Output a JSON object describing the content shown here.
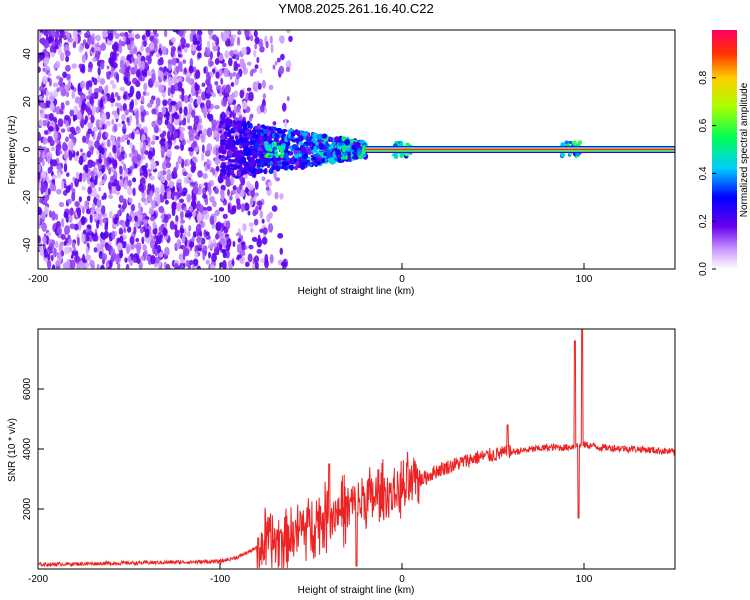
{
  "title": "YM08.2025.261.16.40.C22",
  "chart_data": [
    {
      "type": "heatmap",
      "xlabel": "Height of straight line (km)",
      "ylabel": "Frequency (Hz)",
      "xlim": [
        -200,
        150
      ],
      "ylim": [
        -50,
        50
      ],
      "xticks": [
        -200,
        -100,
        0,
        100
      ],
      "yticks": [
        -40,
        -20,
        0,
        20,
        40
      ],
      "colorbar": {
        "label": "Normalized spectral amplitude",
        "range": [
          0,
          1
        ],
        "ticks": [
          0,
          0.2,
          0.4,
          0.6,
          0.8
        ],
        "tick_labels": [
          "0.0",
          "0.2",
          "0.4",
          "0.6",
          "0.8"
        ]
      },
      "features": {
        "noise_region_x": [
          -200,
          -75
        ],
        "signal_line_freq": 0,
        "signal_onset_x": -20,
        "bursts_x": [
          -70,
          0,
          93
        ]
      },
      "grid": false
    },
    {
      "type": "line",
      "xlabel": "Height of straight line (km)",
      "ylabel": "SNR (10 * v/v)",
      "xlim": [
        -200,
        150
      ],
      "ylim": [
        0,
        8000
      ],
      "xticks": [
        -200,
        -100,
        0,
        100
      ],
      "yticks": [
        2000,
        4000,
        6000
      ],
      "series": [
        {
          "color": "#ee2222",
          "envelope_x": [
            -200,
            -100,
            -90,
            -80,
            -60,
            -40,
            -20,
            0,
            20,
            40,
            60,
            80,
            90,
            95,
            100,
            110,
            130,
            150
          ],
          "envelope_y": [
            150,
            250,
            400,
            700,
            1200,
            1800,
            2300,
            2600,
            3300,
            3700,
            3900,
            4050,
            4050,
            4100,
            4150,
            4050,
            4000,
            3900
          ],
          "spikes": [
            {
              "x": 95,
              "y": 7600
            },
            {
              "x": 97,
              "y": 1700
            },
            {
              "x": 99,
              "y": 8000
            },
            {
              "x": 58,
              "y": 4800
            },
            {
              "x": -40,
              "y": 3500
            },
            {
              "x": -25,
              "y": 100
            }
          ]
        }
      ],
      "grid": false
    }
  ]
}
